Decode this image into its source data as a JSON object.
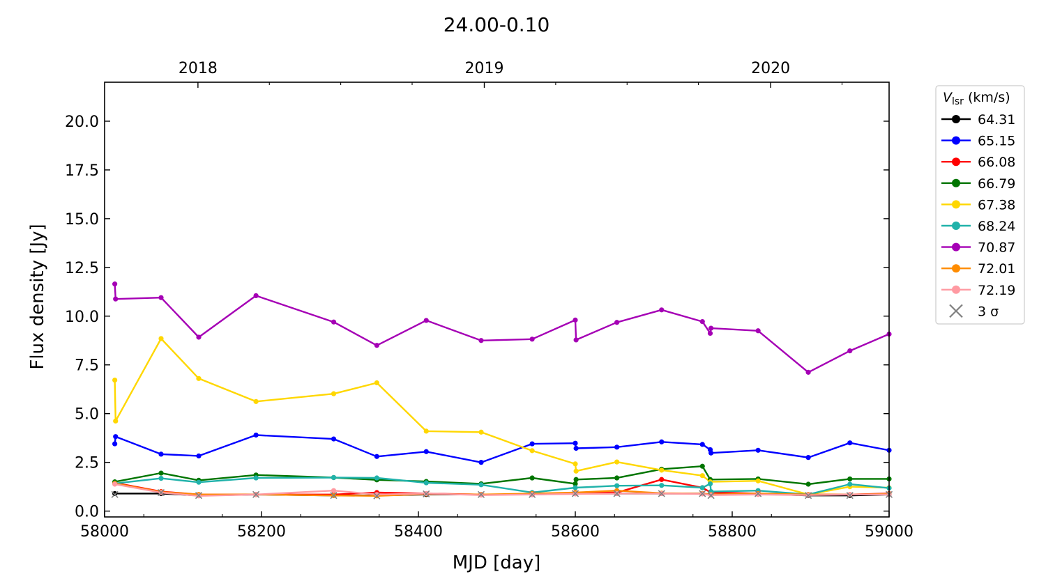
{
  "chart_data": {
    "type": "line",
    "title": "24.00-0.10",
    "xlabel": "MJD [day]",
    "ylabel": "Flux density [Jy]",
    "xlim": [
      58000,
      59000
    ],
    "ylim": [
      -0.3,
      22.0
    ],
    "x_ticks": [
      58000,
      58200,
      58400,
      58600,
      58800,
      59000
    ],
    "y_ticks": [
      0.0,
      2.5,
      5.0,
      7.5,
      10.0,
      12.5,
      15.0,
      17.5,
      20.0
    ],
    "x_tick_labels": [
      "58000",
      "58200",
      "58400",
      "58600",
      "58800",
      "59000"
    ],
    "y_tick_labels": [
      "0.0",
      "2.5",
      "5.0",
      "7.5",
      "10.0",
      "12.5",
      "15.0",
      "17.5",
      "20.0"
    ],
    "top_axis": {
      "ticks": [
        58119,
        58484,
        58849
      ],
      "labels": [
        "2018",
        "2019",
        "2020"
      ],
      "minor_ticks": [
        58210,
        58301,
        58392,
        58575,
        58666,
        58757,
        58940
      ]
    },
    "legend": {
      "title_main": "V",
      "title_sub": "lsr",
      "title_unit": " (km/s)",
      "position": "outside-right",
      "upper_limit_label": "3 σ"
    },
    "series": [
      {
        "name": "64.31",
        "color": "#000000",
        "x": [
          58013,
          58072,
          58120,
          58193,
          58292,
          58347,
          58410,
          58480,
          58545,
          58600,
          58653,
          58710,
          58762,
          58773,
          58833,
          58897,
          58950,
          59000
        ],
        "y": [
          0.9,
          0.9,
          0.8,
          0.85,
          0.8,
          0.8,
          0.85,
          0.85,
          0.85,
          0.9,
          0.9,
          0.9,
          0.9,
          0.85,
          0.9,
          0.8,
          0.8,
          0.85
        ]
      },
      {
        "name": "65.15",
        "color": "#0000ff",
        "x": [
          58013,
          58014,
          58072,
          58120,
          58193,
          58292,
          58347,
          58410,
          58480,
          58545,
          58600,
          58601,
          58653,
          58710,
          58762,
          58772,
          58773,
          58833,
          58897,
          58950,
          59000
        ],
        "y": [
          3.45,
          3.82,
          2.92,
          2.83,
          3.9,
          3.7,
          2.8,
          3.05,
          2.5,
          3.45,
          3.48,
          3.22,
          3.28,
          3.55,
          3.42,
          3.15,
          2.98,
          3.12,
          2.75,
          3.5,
          3.12
        ]
      },
      {
        "name": "66.08",
        "color": "#ff0000",
        "x": [
          58013,
          58072,
          58120,
          58193,
          58292,
          58347,
          58410,
          58480,
          58545,
          58600,
          58653,
          58710,
          58762,
          58773,
          58833,
          58897,
          58950,
          59000
        ],
        "y": [
          1.45,
          1.0,
          0.85,
          0.85,
          0.85,
          0.95,
          0.9,
          0.85,
          0.85,
          0.95,
          0.95,
          1.62,
          1.2,
          0.95,
          0.9,
          0.85,
          0.85,
          0.9
        ]
      },
      {
        "name": "66.79",
        "color": "#007500",
        "x": [
          58013,
          58072,
          58120,
          58193,
          58292,
          58347,
          58410,
          58480,
          58545,
          58600,
          58601,
          58653,
          58710,
          58762,
          58772,
          58833,
          58897,
          58950,
          59000
        ],
        "y": [
          1.5,
          1.95,
          1.58,
          1.85,
          1.72,
          1.6,
          1.52,
          1.4,
          1.7,
          1.4,
          1.62,
          1.7,
          2.15,
          2.3,
          1.62,
          1.65,
          1.38,
          1.65,
          1.65
        ]
      },
      {
        "name": "67.38",
        "color": "#ffd700",
        "x": [
          58013,
          58014,
          58072,
          58120,
          58193,
          58292,
          58347,
          58410,
          58480,
          58545,
          58600,
          58601,
          58653,
          58710,
          58762,
          58772,
          58833,
          58897,
          58950,
          59000
        ],
        "y": [
          6.72,
          4.62,
          8.85,
          6.8,
          5.62,
          6.02,
          6.58,
          4.1,
          4.05,
          3.1,
          2.42,
          2.05,
          2.52,
          2.1,
          1.82,
          1.5,
          1.55,
          0.85,
          1.25,
          1.2
        ]
      },
      {
        "name": "68.24",
        "color": "#20b2aa",
        "x": [
          58013,
          58072,
          58120,
          58193,
          58292,
          58347,
          58410,
          58480,
          58545,
          58600,
          58653,
          58710,
          58762,
          58772,
          58773,
          58833,
          58897,
          58950,
          59000
        ],
        "y": [
          1.42,
          1.68,
          1.48,
          1.7,
          1.72,
          1.7,
          1.45,
          1.35,
          0.95,
          1.2,
          1.3,
          1.32,
          1.2,
          1.4,
          1.0,
          1.05,
          0.85,
          1.38,
          1.18
        ]
      },
      {
        "name": "70.87",
        "color": "#a500b5",
        "x": [
          58013,
          58014,
          58072,
          58120,
          58193,
          58292,
          58347,
          58410,
          58480,
          58545,
          58600,
          58601,
          58653,
          58710,
          58762,
          58772,
          58773,
          58833,
          58897,
          58950,
          59000
        ],
        "y": [
          11.65,
          10.88,
          10.95,
          8.92,
          11.05,
          9.7,
          8.5,
          9.78,
          8.75,
          8.82,
          9.8,
          8.78,
          9.68,
          10.32,
          9.72,
          9.12,
          9.38,
          9.25,
          7.12,
          8.22,
          9.08
        ]
      },
      {
        "name": "72.01",
        "color": "#ff8c00",
        "x": [
          58013,
          58072,
          58120,
          58193,
          58292,
          58347,
          58410,
          58480,
          58545,
          58600,
          58653,
          58710,
          58762,
          58773,
          58833,
          58897,
          58950,
          59000
        ],
        "y": [
          1.42,
          0.98,
          0.85,
          0.85,
          0.8,
          0.78,
          0.88,
          0.85,
          0.9,
          0.95,
          1.05,
          0.92,
          0.9,
          0.85,
          0.9,
          0.85,
          0.85,
          0.88
        ]
      },
      {
        "name": "72.19",
        "color": "#ff9aa2",
        "x": [
          58013,
          58072,
          58120,
          58193,
          58292,
          58347,
          58410,
          58480,
          58545,
          58600,
          58653,
          58710,
          58762,
          58773,
          58833,
          58897,
          58950,
          59000
        ],
        "y": [
          1.38,
          0.95,
          0.78,
          0.85,
          1.05,
          0.85,
          0.9,
          0.82,
          0.85,
          0.88,
          0.9,
          0.9,
          0.88,
          0.82,
          0.85,
          0.82,
          0.85,
          0.85
        ]
      }
    ],
    "upper_limits_3sigma": {
      "color": "#808080",
      "x": [
        58013,
        58072,
        58120,
        58193,
        58292,
        58347,
        58410,
        58480,
        58545,
        58600,
        58653,
        58710,
        58762,
        58773,
        58833,
        58897,
        58950,
        59000
      ],
      "y": [
        0.85,
        0.95,
        0.8,
        0.85,
        0.8,
        0.78,
        0.88,
        0.85,
        0.85,
        0.9,
        0.9,
        0.9,
        0.9,
        0.8,
        0.9,
        0.8,
        0.8,
        0.85
      ]
    }
  }
}
